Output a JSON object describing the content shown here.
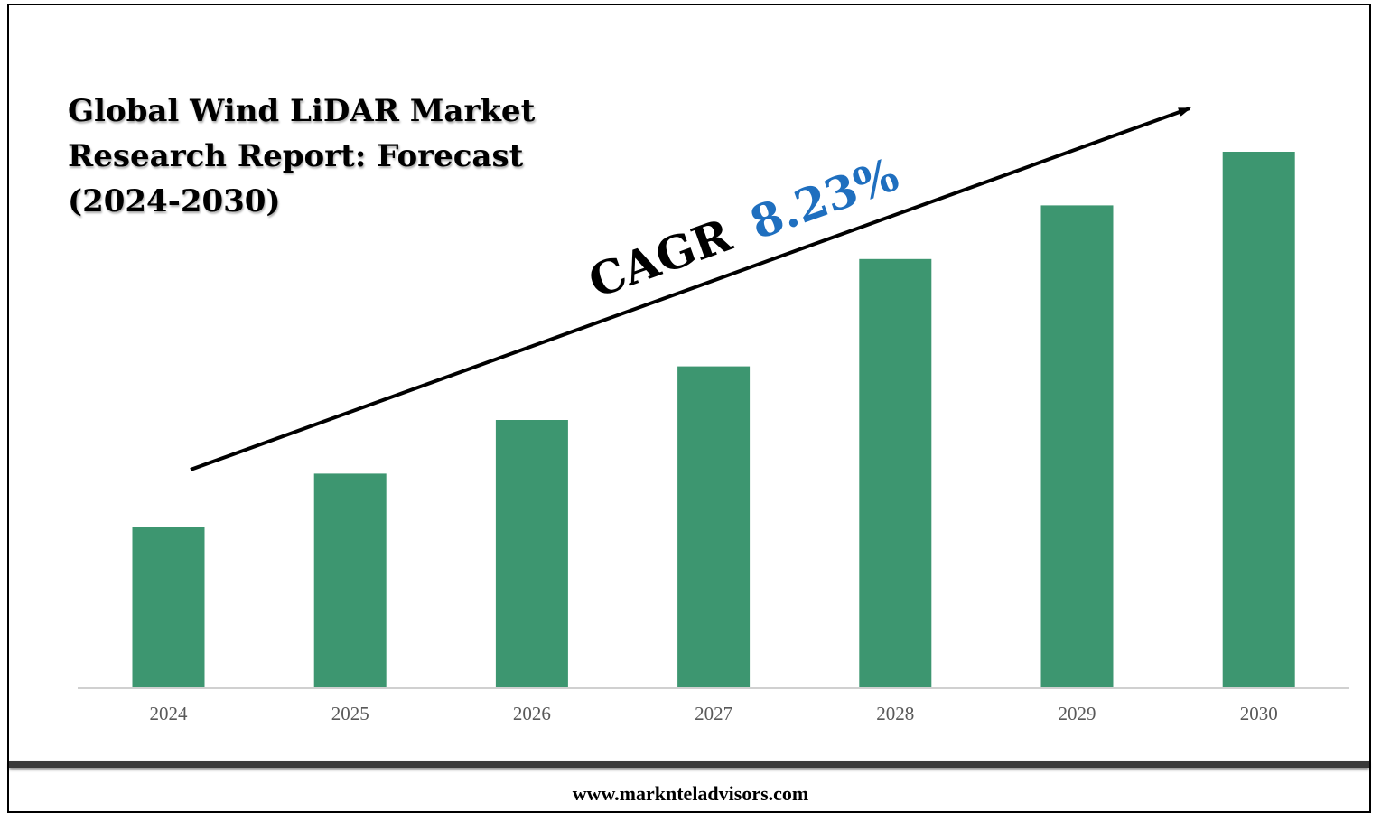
{
  "title": "Global Wind LiDAR Market Research Report: Forecast (2024-2030)",
  "cagr": {
    "label": "CAGR",
    "value": "8.23%",
    "value_color": "#1f6fbf"
  },
  "footer": {
    "url": "www.marknteladvisors.com"
  },
  "chart_data": {
    "type": "bar",
    "title": "Global Wind LiDAR Market Research Report: Forecast (2024-2030)",
    "categories": [
      "2024",
      "2025",
      "2026",
      "2027",
      "2028",
      "2029",
      "2030"
    ],
    "values": [
      30,
      40,
      50,
      60,
      80,
      90,
      100
    ],
    "ylim": [
      0,
      100
    ],
    "xlabel": "",
    "ylabel": "",
    "grid": false,
    "bar_color": "#3d9670",
    "axis_color": "#d0d0d0",
    "tick_color": "#595959"
  }
}
